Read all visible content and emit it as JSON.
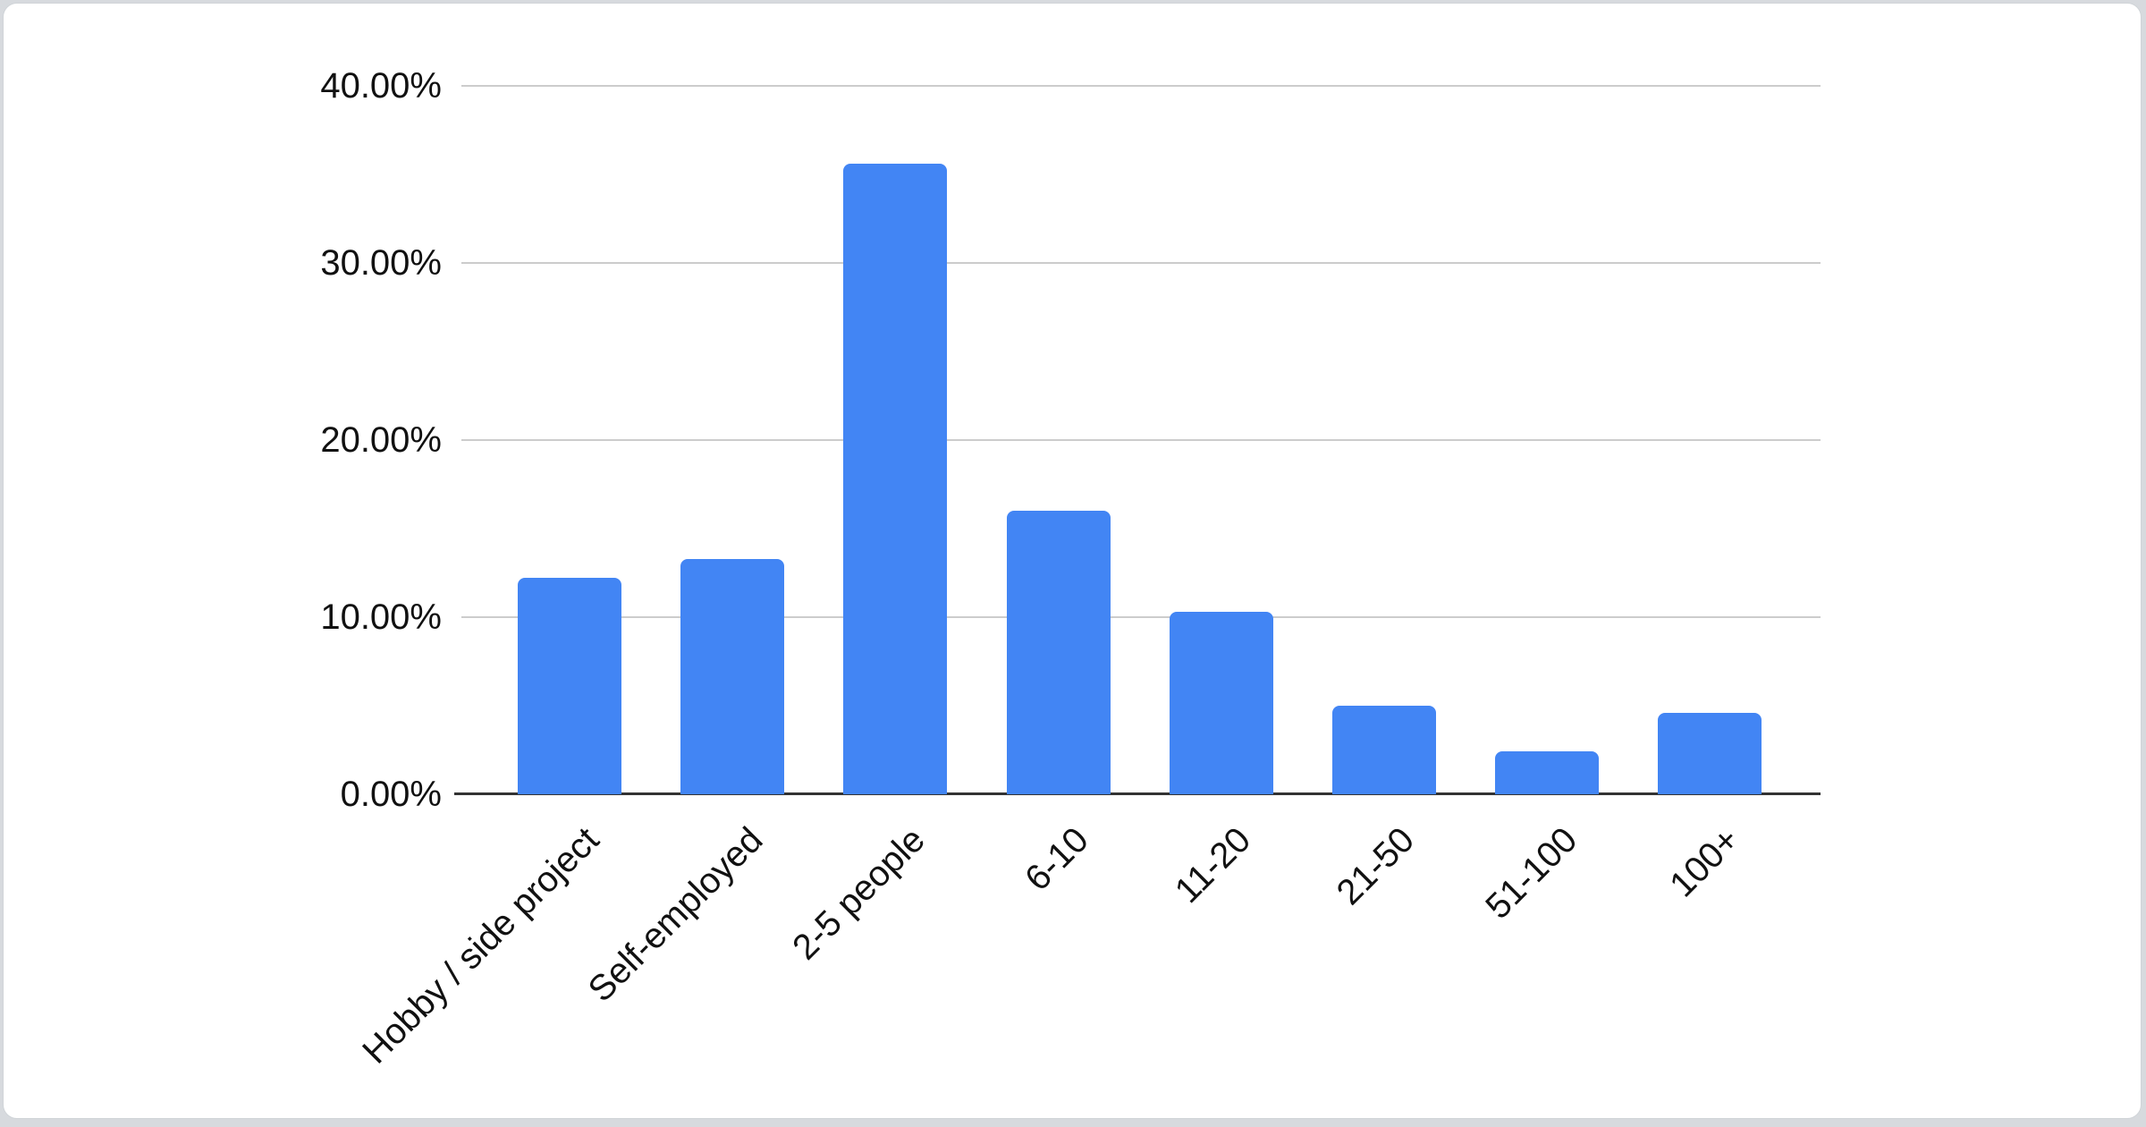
{
  "chart_data": {
    "type": "bar",
    "title": "",
    "xlabel": "",
    "ylabel": "",
    "categories": [
      "Hobby / side project",
      "Self-employed",
      "2-5 people",
      "6-10",
      "11-20",
      "21-50",
      "51-100",
      "100+"
    ],
    "values": [
      12.2,
      13.3,
      35.6,
      16.0,
      10.3,
      5.0,
      2.4,
      4.6
    ],
    "value_unit": "%",
    "ylim": [
      0,
      40
    ],
    "y_ticks": [
      "0.00%",
      "10.00%",
      "20.00%",
      "30.00%",
      "40.00%"
    ],
    "y_tick_values": [
      0,
      10,
      20,
      30,
      40
    ],
    "grid": true,
    "legend_position": "none",
    "bar_color": "#4285f4",
    "gridline_color": "#cccccc",
    "axis_line_color": "#333333",
    "label_color": "#111111"
  }
}
